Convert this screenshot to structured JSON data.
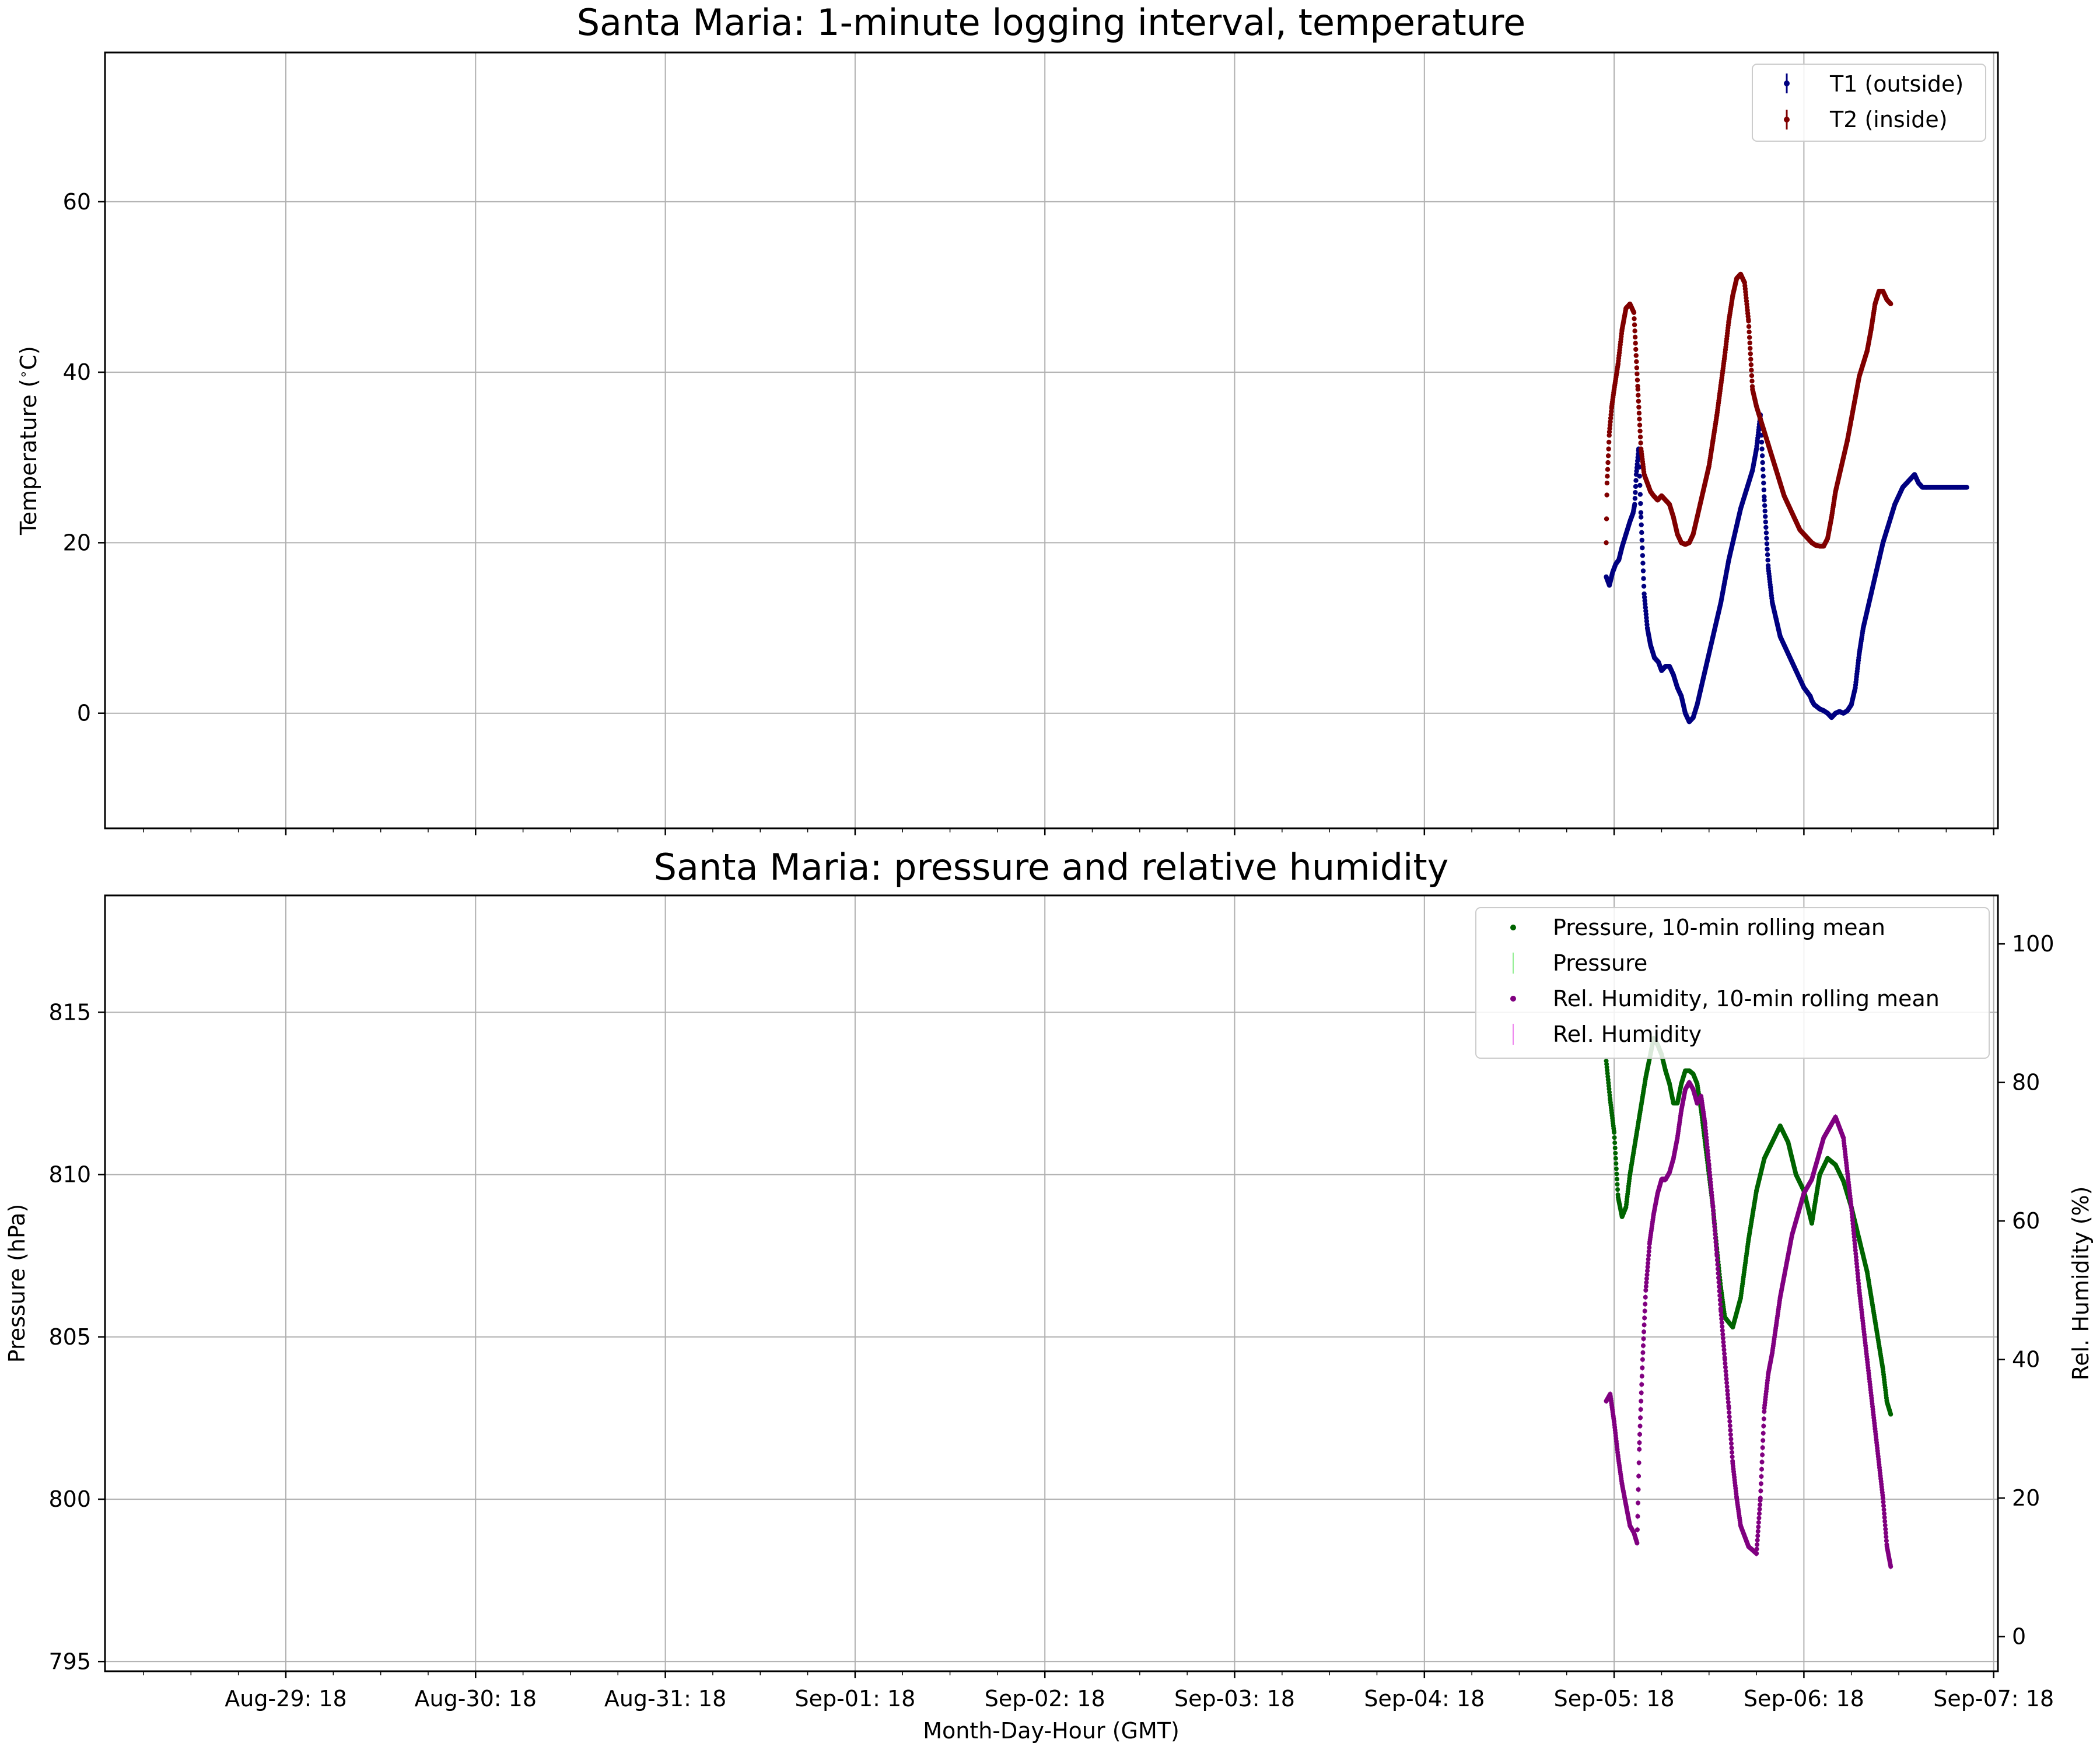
{
  "chart_data": [
    {
      "type": "scatter",
      "title": "Santa Maria: 1-minute logging interval, temperature",
      "xlabel": "",
      "ylabel": "Temperature (°C)",
      "ylabel_parts": {
        "prefix": "Temperature (",
        "degree": "∘",
        "suffix": "C)"
      },
      "ylim": [
        -13.5,
        77.5
      ],
      "yticks": [
        0,
        20,
        40,
        60
      ],
      "ytick_labels": [
        "0",
        "20",
        "40",
        "60"
      ],
      "xlim": [
        "Aug-28 T20:00",
        "Sep-07 T18:40"
      ],
      "xticks": [
        "Aug-29: 18",
        "Aug-30: 18",
        "Aug-31: 18",
        "Sep-01: 18",
        "Sep-02: 18",
        "Sep-03: 18",
        "Sep-04: 18",
        "Sep-05: 18",
        "Sep-06: 18",
        "Sep-07: 18"
      ],
      "grid": true,
      "legend_position": "upper right",
      "series": [
        {
          "name": "T1 (outside)",
          "color": "#000080",
          "x_hours_from_sep05_18": [
            -1.0,
            -0.6,
            -0.2,
            0.2,
            0.6,
            1.0,
            1.5,
            2.0,
            2.4,
            2.6,
            2.8,
            3.1,
            3.4,
            3.8,
            4.2,
            4.6,
            5.1,
            5.6,
            6.0,
            6.5,
            7.0,
            7.5,
            8.0,
            8.5,
            9.0,
            9.5,
            10.0,
            10.5,
            11.0,
            11.5,
            12.0,
            12.5,
            13.0,
            13.5,
            14.0,
            14.5,
            15.0,
            15.5,
            16.0,
            16.5,
            17.0,
            17.5,
            18.0,
            18.5,
            19.0,
            19.5,
            20.0,
            20.5,
            21.0,
            21.5,
            22.0,
            22.5,
            23.0,
            23.5,
            24.0,
            24.4,
            24.8,
            25.0,
            25.3,
            25.6,
            26.0,
            26.5,
            27.0,
            27.5,
            28.0,
            28.5,
            29.0,
            29.5,
            30.0,
            30.5,
            31.0,
            31.5,
            32.0,
            32.5,
            33.0,
            33.5,
            34.0,
            34.5,
            35.0,
            35.5,
            36.0,
            36.5,
            37.0,
            37.5,
            38.0,
            38.5,
            39.0,
            39.5,
            40.0,
            40.5,
            41.0,
            41.5,
            42.0,
            42.5,
            43.0,
            43.4,
            43.8,
            44.2,
            44.6
          ],
          "values": [
            16.0,
            15.0,
            16.5,
            17.5,
            18.0,
            19.5,
            21.0,
            22.5,
            23.5,
            24.5,
            28.0,
            31.0,
            23.0,
            14.0,
            10.0,
            8.0,
            6.5,
            6.0,
            5.0,
            5.5,
            5.5,
            4.5,
            3.0,
            2.0,
            0.0,
            -1.0,
            -0.5,
            1.0,
            3.0,
            5.0,
            7.0,
            9.0,
            11.0,
            13.0,
            15.5,
            18.0,
            20.0,
            22.0,
            24.0,
            25.5,
            27.0,
            28.5,
            31.0,
            35.0,
            25.0,
            17.0,
            13.0,
            11.0,
            9.0,
            8.0,
            7.0,
            6.0,
            5.0,
            4.0,
            3.0,
            2.5,
            2.0,
            1.5,
            1.0,
            0.8,
            0.5,
            0.3,
            0.0,
            -0.5,
            0.0,
            0.2,
            0.0,
            0.3,
            1.0,
            3.0,
            7.0,
            10.0,
            12.0,
            14.0,
            16.0,
            18.0,
            20.0,
            21.5,
            23.0,
            24.5,
            25.5,
            26.5,
            27.0,
            27.5,
            28.0,
            27.0,
            26.5,
            26.5,
            26.5,
            26.5,
            26.5,
            26.5,
            26.5,
            26.5,
            26.5,
            26.5,
            26.5,
            26.5,
            26.5
          ]
        },
        {
          "name": "T2 (inside)",
          "color": "#800000",
          "x_hours_from_sep05_18": [
            -1.0,
            -0.9,
            -0.6,
            -0.3,
            0.0,
            0.5,
            1.0,
            1.5,
            2.0,
            2.5,
            3.0,
            3.4,
            3.8,
            4.2,
            4.6,
            5.0,
            5.5,
            6.0,
            6.5,
            7.0,
            7.5,
            8.0,
            8.5,
            9.0,
            9.5,
            10.0,
            10.5,
            11.0,
            11.5,
            12.0,
            12.5,
            13.0,
            13.5,
            14.0,
            14.5,
            15.0,
            15.5,
            16.0,
            16.5,
            17.0,
            17.5,
            18.0,
            18.5,
            19.0,
            19.5,
            20.0,
            20.5,
            21.0,
            21.5,
            22.0,
            22.5,
            23.0,
            23.5,
            24.0,
            24.5,
            25.0,
            25.5,
            26.0,
            26.5,
            27.0,
            27.5,
            28.0,
            28.5,
            29.0,
            29.5,
            30.0,
            30.5,
            31.0,
            31.5,
            32.0,
            32.5,
            33.0,
            33.5,
            34.0,
            34.5,
            35.0
          ],
          "values": [
            20.0,
            27.0,
            33.0,
            36.0,
            38.0,
            41.0,
            45.0,
            47.5,
            48.0,
            47.0,
            38.0,
            31.0,
            28.0,
            27.0,
            26.0,
            25.5,
            25.0,
            25.5,
            25.0,
            24.5,
            23.0,
            21.0,
            20.0,
            19.8,
            20.0,
            21.0,
            23.0,
            25.0,
            27.0,
            29.0,
            32.0,
            35.0,
            38.5,
            42.0,
            46.0,
            49.0,
            51.0,
            51.5,
            50.5,
            46.0,
            38.0,
            36.0,
            34.5,
            33.0,
            31.5,
            30.0,
            28.5,
            27.0,
            25.5,
            24.5,
            23.5,
            22.5,
            21.5,
            21.0,
            20.5,
            20.0,
            19.7,
            19.6,
            19.6,
            20.5,
            23.0,
            26.0,
            28.0,
            30.0,
            32.0,
            34.5,
            37.0,
            39.5,
            41.0,
            42.5,
            45.0,
            48.0,
            49.5,
            49.5,
            48.5,
            48.0
          ]
        }
      ]
    },
    {
      "type": "scatter",
      "title": "Santa Maria: pressure and relative humidity",
      "xlabel": "Month-Day-Hour (GMT)",
      "ylabel": "Pressure (hPa)",
      "ylabel_right": "Rel. Humidity (%)",
      "ylim": [
        794.7,
        818.6
      ],
      "yticks": [
        795,
        800,
        805,
        810,
        815
      ],
      "ytick_labels": [
        "795",
        "800",
        "805",
        "810",
        "815"
      ],
      "ylim_right": [
        -5.0,
        107.0
      ],
      "yticks_right": [
        0,
        20,
        40,
        60,
        80,
        100
      ],
      "ytick_labels_right": [
        "0",
        "20",
        "40",
        "60",
        "80",
        "100"
      ],
      "xlim": [
        "Aug-28 T20:00",
        "Sep-07 T18:40"
      ],
      "xticks": [
        "Aug-29: 18",
        "Aug-30: 18",
        "Aug-31: 18",
        "Sep-01: 18",
        "Sep-02: 18",
        "Sep-03: 18",
        "Sep-04: 18",
        "Sep-05: 18",
        "Sep-06: 18",
        "Sep-07: 18"
      ],
      "grid": true,
      "legend_position": "upper right",
      "legend": [
        "Pressure, 10-min rolling mean",
        "Pressure",
        "Rel. Humidity, 10-min rolling mean",
        "Rel. Humidity"
      ],
      "series": [
        {
          "name": "Pressure, 10-min rolling mean",
          "axis": "left",
          "color": "#006400",
          "x_hours_from_sep05_18": [
            -1.0,
            -0.5,
            0.0,
            0.5,
            1.0,
            1.5,
            2.0,
            3.0,
            4.0,
            5.0,
            5.5,
            6.0,
            6.5,
            7.0,
            7.5,
            8.0,
            8.5,
            9.0,
            9.5,
            10.0,
            10.5,
            11.0,
            11.5,
            12.0,
            12.5,
            13.0,
            13.5,
            14.0,
            15.0,
            16.0,
            17.0,
            18.0,
            19.0,
            20.0,
            21.0,
            22.0,
            23.0,
            24.0,
            25.0,
            26.0,
            27.0,
            28.0,
            29.0,
            30.0,
            31.0,
            32.0,
            33.0,
            34.0,
            34.5,
            35.0
          ],
          "values": [
            813.5,
            812.3,
            811.3,
            809.3,
            808.7,
            809.0,
            810.0,
            811.5,
            813.0,
            814.2,
            814.0,
            813.7,
            813.2,
            812.8,
            812.2,
            812.2,
            812.8,
            813.2,
            813.2,
            813.1,
            812.8,
            812.0,
            811.0,
            810.0,
            809.0,
            807.7,
            806.5,
            805.6,
            805.3,
            806.2,
            808.0,
            809.5,
            810.5,
            811.0,
            811.5,
            811.0,
            810.0,
            809.5,
            808.5,
            810.0,
            810.5,
            810.3,
            809.8,
            809.0,
            808.0,
            807.0,
            805.5,
            804.0,
            803.0,
            802.6
          ]
        },
        {
          "name": "Pressure",
          "axis": "left",
          "color": "#90ee90"
        },
        {
          "name": "Rel. Humidity, 10-min rolling mean",
          "axis": "right",
          "color": "#800080",
          "x_hours_from_sep05_18": [
            -1.0,
            -0.5,
            0.0,
            0.5,
            1.0,
            1.5,
            2.0,
            2.5,
            2.9,
            3.2,
            3.6,
            4.0,
            4.5,
            5.0,
            5.5,
            6.0,
            6.5,
            7.0,
            7.5,
            8.0,
            8.5,
            9.0,
            9.5,
            10.0,
            10.5,
            11.0,
            11.5,
            12.0,
            12.5,
            13.0,
            13.5,
            14.0,
            14.5,
            15.0,
            15.5,
            16.0,
            17.0,
            18.0,
            18.5,
            19.0,
            19.5,
            20.0,
            20.5,
            21.0,
            21.5,
            22.0,
            22.5,
            23.0,
            23.5,
            24.0,
            24.5,
            25.0,
            25.5,
            26.0,
            26.5,
            27.0,
            27.5,
            28.0,
            29.0,
            30.0,
            31.0,
            32.0,
            33.0,
            34.0,
            34.5,
            35.0
          ],
          "values": [
            34.0,
            35.0,
            31.0,
            26.0,
            22.0,
            19.0,
            16.0,
            15.0,
            13.5,
            28.0,
            40.0,
            50.0,
            57.0,
            61.0,
            64.0,
            66.0,
            66.0,
            67.0,
            69.0,
            72.0,
            76.0,
            79.0,
            80.0,
            79.0,
            77.0,
            78.0,
            74.0,
            68.0,
            62.0,
            55.0,
            47.0,
            40.0,
            33.0,
            25.0,
            20.0,
            16.0,
            13.0,
            12.0,
            20.0,
            33.0,
            38.0,
            41.0,
            45.0,
            49.0,
            52.0,
            55.0,
            58.0,
            60.0,
            62.0,
            64.0,
            65.0,
            66.0,
            68.0,
            70.0,
            72.0,
            73.0,
            74.0,
            75.0,
            72.0,
            62.0,
            50.0,
            40.0,
            30.0,
            20.0,
            13.0,
            10.0
          ]
        },
        {
          "name": "Rel. Humidity",
          "axis": "right",
          "color": "#ee82ee"
        }
      ]
    }
  ],
  "colors": {
    "t1": "#000080",
    "t2": "#800000",
    "pressure_mean": "#006400",
    "pressure_raw": "#90ee90",
    "rh_mean": "#800080",
    "rh_raw": "#ee82ee",
    "grid": "#b0b0b0",
    "axes": "#000000"
  }
}
